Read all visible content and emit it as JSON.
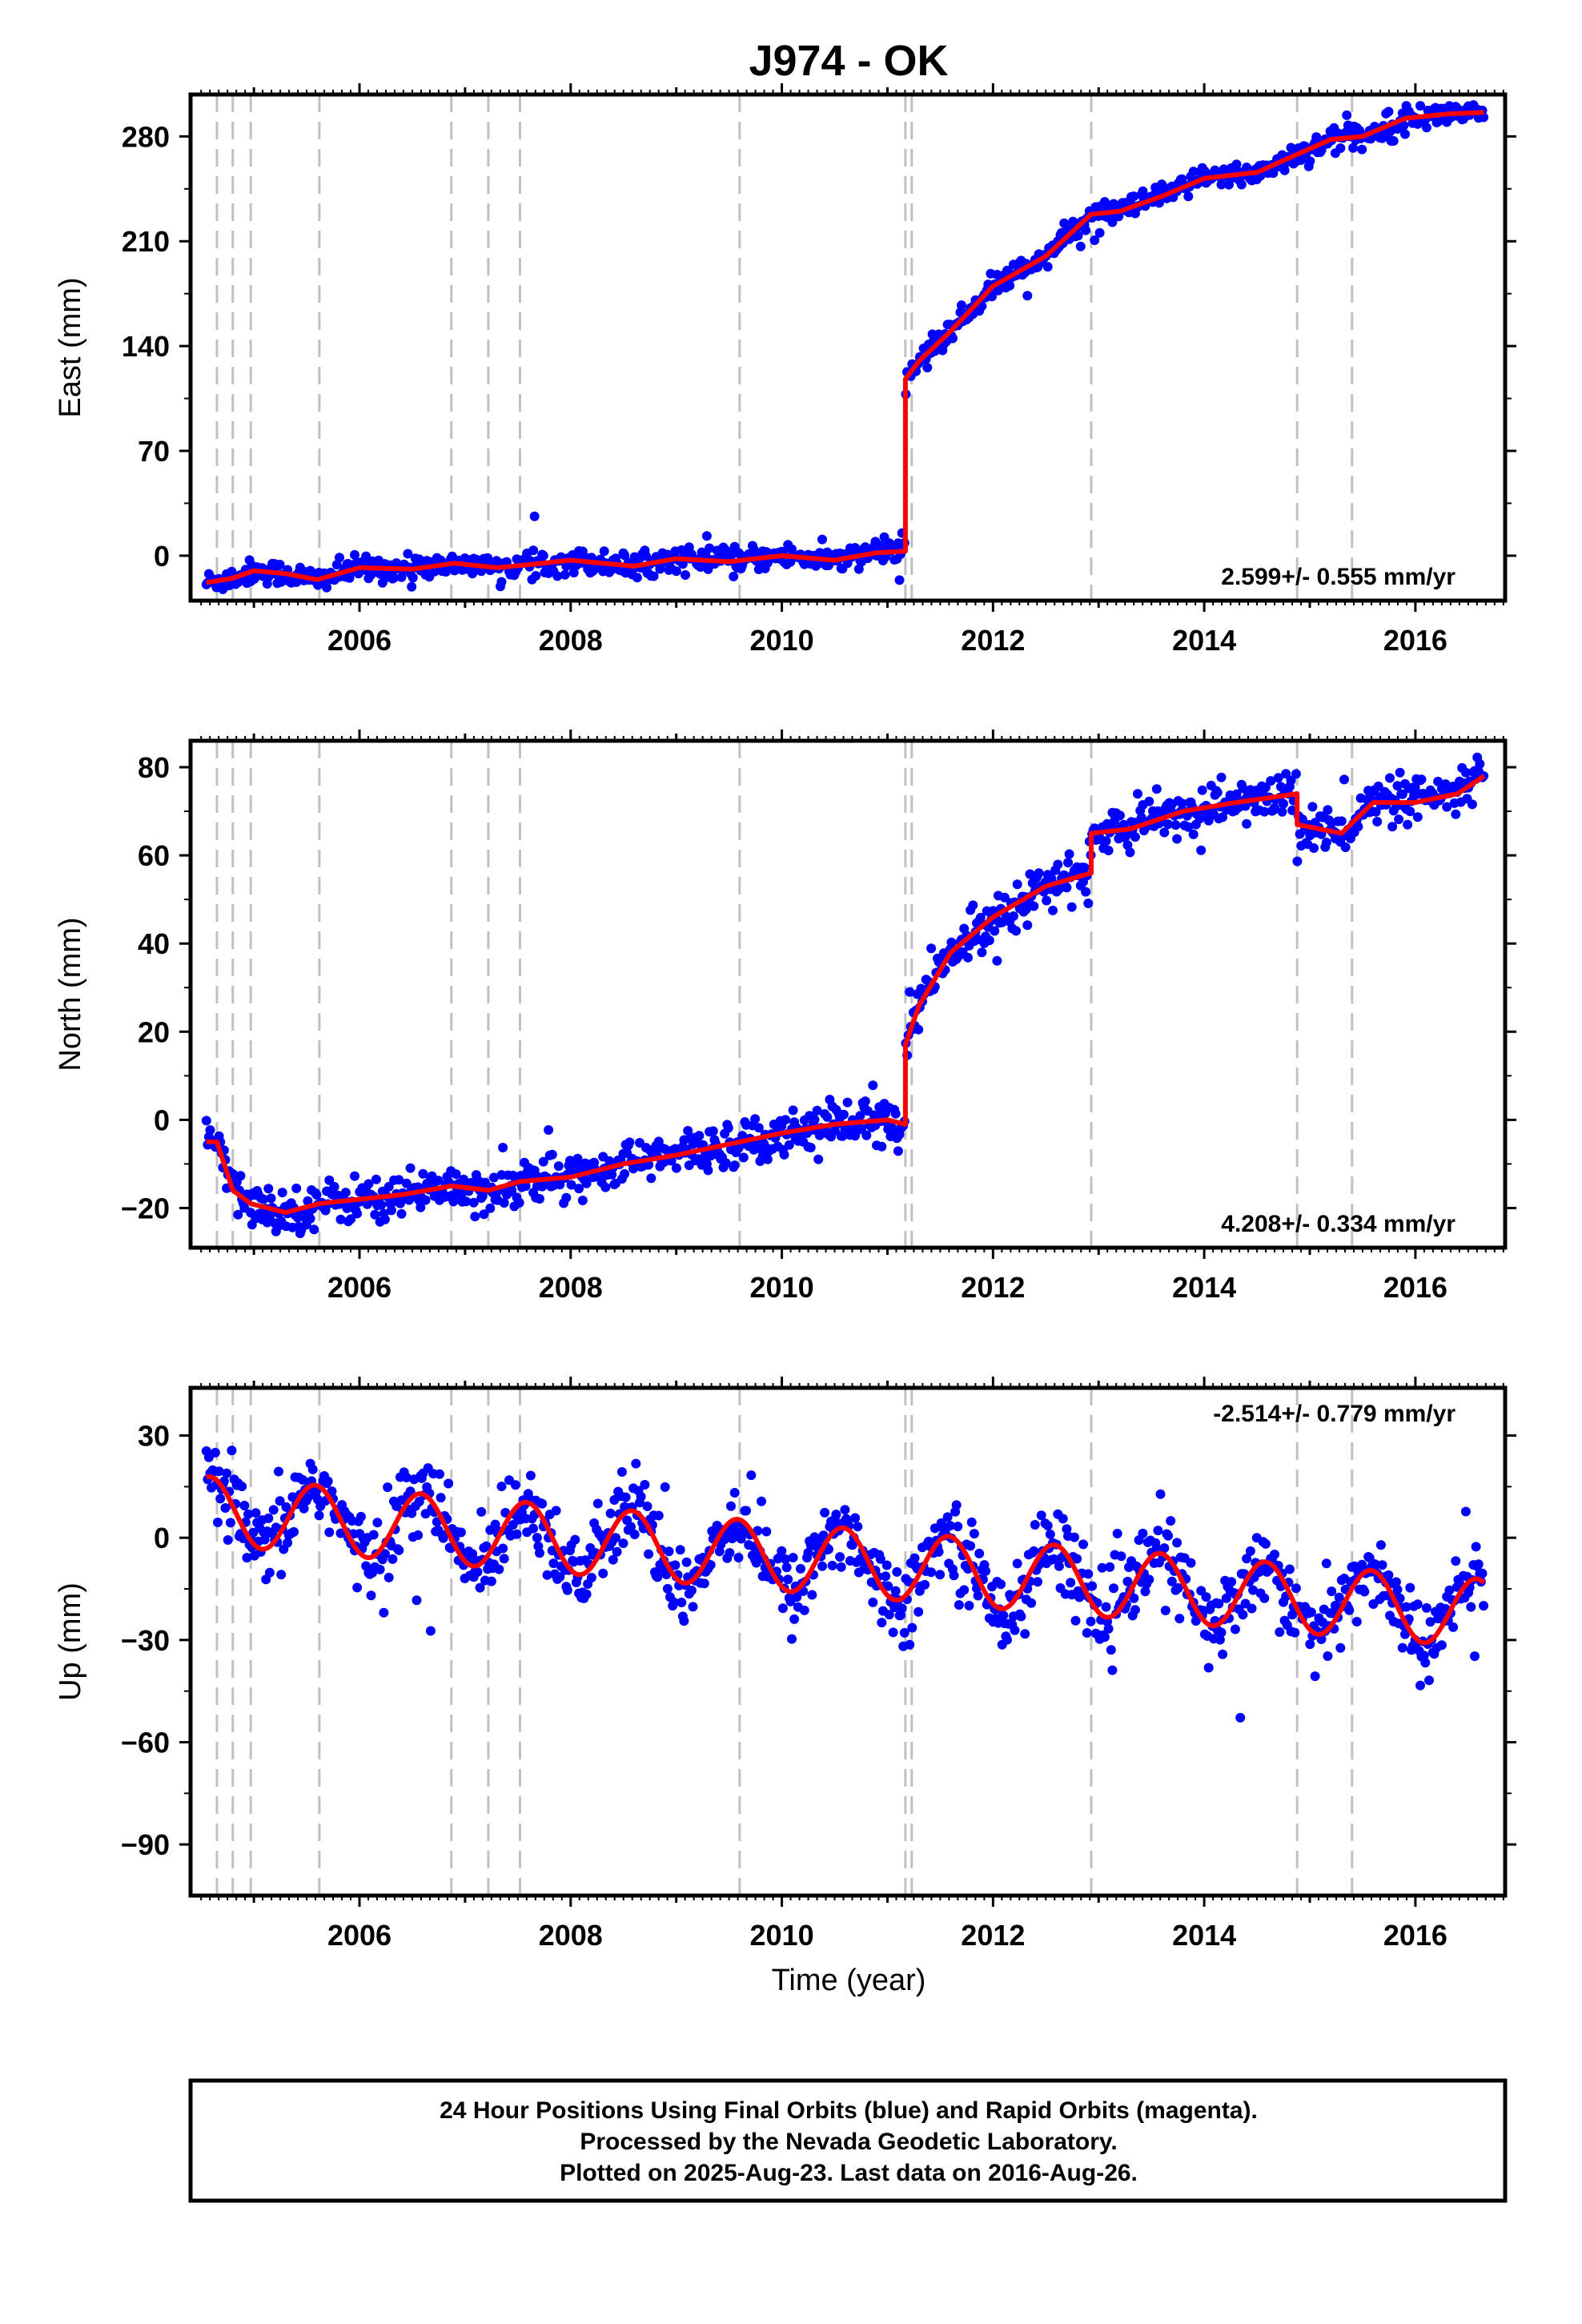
{
  "chart_data": {
    "type": "scatter",
    "title": "J974 - OK",
    "xlabel": "Time (year)",
    "x_tick_labels": [
      "2006",
      "2008",
      "2010",
      "2012",
      "2014",
      "2016"
    ],
    "xlim": [
      2004.4,
      2016.85
    ],
    "offset_epochs": [
      2004.65,
      2004.8,
      2004.97,
      2005.62,
      2006.87,
      2007.22,
      2007.52,
      2009.6,
      2011.17,
      2011.23,
      2012.93,
      2014.88,
      2015.4
    ],
    "colors": {
      "data": "#0000ff",
      "model": "#ff0000",
      "offset_line": "#c0c0c0"
    },
    "panels": [
      {
        "component": "East",
        "ylabel": "East (mm)",
        "ylim": [
          -30,
          308
        ],
        "yticks": [
          0,
          70,
          140,
          210,
          280
        ],
        "rate_label": "2.599+/- 0.555 mm/yr",
        "rate_position": "bottom-right",
        "model": [
          [
            2004.55,
            -18
          ],
          [
            2004.8,
            -15
          ],
          [
            2005.0,
            -10
          ],
          [
            2005.3,
            -12
          ],
          [
            2005.6,
            -16
          ],
          [
            2006.0,
            -8
          ],
          [
            2006.5,
            -9
          ],
          [
            2006.9,
            -5
          ],
          [
            2007.3,
            -8
          ],
          [
            2007.6,
            -6
          ],
          [
            2008.0,
            -3
          ],
          [
            2008.6,
            -7
          ],
          [
            2009.0,
            -2
          ],
          [
            2009.5,
            -4
          ],
          [
            2010.0,
            0
          ],
          [
            2010.5,
            -3
          ],
          [
            2010.9,
            2
          ],
          [
            2011.17,
            3
          ],
          [
            2011.17,
            118
          ],
          [
            2011.3,
            130
          ],
          [
            2011.6,
            150
          ],
          [
            2012.0,
            180
          ],
          [
            2012.5,
            200
          ],
          [
            2012.93,
            228
          ],
          [
            2013.2,
            230
          ],
          [
            2013.6,
            240
          ],
          [
            2014.0,
            252
          ],
          [
            2014.5,
            256
          ],
          [
            2014.88,
            268
          ],
          [
            2015.2,
            278
          ],
          [
            2015.5,
            280
          ],
          [
            2015.9,
            292
          ],
          [
            2016.3,
            295
          ],
          [
            2016.65,
            296
          ]
        ],
        "scatter_noise": 4
      },
      {
        "component": "North",
        "ylabel": "North (mm)",
        "ylim": [
          -29,
          86
        ],
        "yticks": [
          -20,
          0,
          20,
          40,
          60,
          80
        ],
        "rate_label": "4.208+/- 0.334 mm/yr",
        "rate_position": "bottom-right",
        "model": [
          [
            2004.55,
            -5
          ],
          [
            2004.65,
            -5
          ],
          [
            2004.8,
            -16
          ],
          [
            2004.97,
            -19
          ],
          [
            2005.3,
            -21
          ],
          [
            2005.62,
            -19
          ],
          [
            2006.0,
            -18
          ],
          [
            2006.4,
            -17
          ],
          [
            2006.87,
            -15
          ],
          [
            2007.22,
            -16
          ],
          [
            2007.52,
            -14
          ],
          [
            2008.0,
            -13
          ],
          [
            2008.5,
            -10
          ],
          [
            2009.0,
            -8
          ],
          [
            2009.6,
            -5
          ],
          [
            2010.0,
            -3
          ],
          [
            2010.5,
            -1
          ],
          [
            2011.0,
            0
          ],
          [
            2011.17,
            -1
          ],
          [
            2011.17,
            17
          ],
          [
            2011.3,
            26
          ],
          [
            2011.6,
            38
          ],
          [
            2012.0,
            46
          ],
          [
            2012.5,
            53
          ],
          [
            2012.93,
            56
          ],
          [
            2012.93,
            65
          ],
          [
            2013.3,
            66
          ],
          [
            2013.8,
            70
          ],
          [
            2014.3,
            72
          ],
          [
            2014.88,
            74
          ],
          [
            2014.88,
            67
          ],
          [
            2015.3,
            65
          ],
          [
            2015.6,
            72
          ],
          [
            2016.0,
            72
          ],
          [
            2016.4,
            74
          ],
          [
            2016.65,
            78
          ]
        ],
        "scatter_noise": 2.5
      },
      {
        "component": "Up",
        "ylabel": "Up (mm)",
        "ylim": [
          -105,
          44
        ],
        "yticks": [
          -90,
          -60,
          -30,
          0,
          30
        ],
        "rate_label": "-2.514+/- 0.779 mm/yr",
        "rate_position": "top-right",
        "model_seasonal": {
          "amplitude": 10,
          "trend_start": 8,
          "trend_per_year": -2.5,
          "start": 2004.55,
          "end": 2016.65,
          "peak_year_fraction": 0.58
        },
        "scatter_noise": 6
      }
    ]
  },
  "footer": {
    "line1": "24 Hour Positions Using Final Orbits (blue) and Rapid Orbits (magenta).",
    "line2": "Processed by the Nevada Geodetic Laboratory.",
    "line3": "Plotted on 2025-Aug-23. Last data on 2016-Aug-26."
  }
}
